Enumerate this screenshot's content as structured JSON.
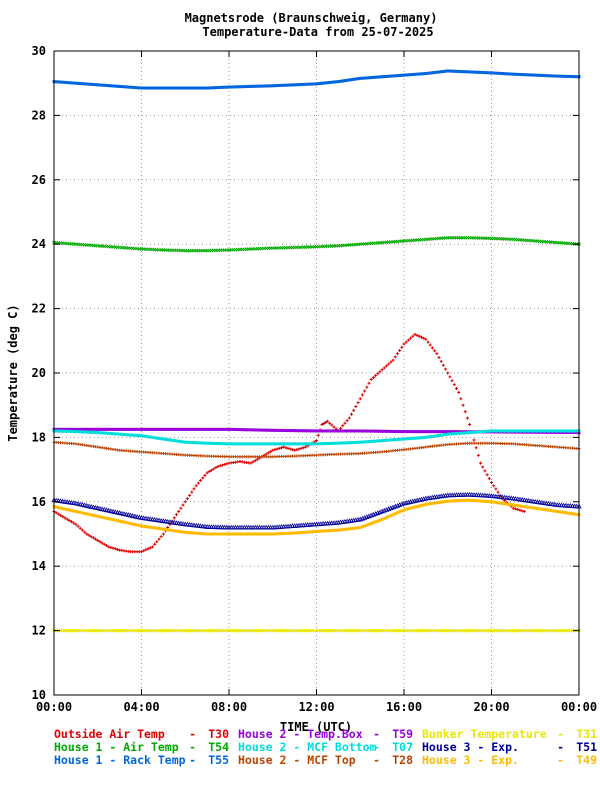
{
  "chart_data": {
    "type": "scatter",
    "title": "Magnetsrode (Braunschweig, Germany)",
    "subtitle": "Temperature-Data from 25-07-2025",
    "xlabel": "TIME (UTC)",
    "ylabel": "Temperature (deg C)",
    "xlim": [
      0,
      24
    ],
    "ylim": [
      10,
      30
    ],
    "grid": true,
    "legend_position": "bottom",
    "x_ticks": [
      {
        "value": 0,
        "label": "00:00"
      },
      {
        "value": 4,
        "label": "04:00"
      },
      {
        "value": 8,
        "label": "08:00"
      },
      {
        "value": 12,
        "label": "12:00"
      },
      {
        "value": 16,
        "label": "16:00"
      },
      {
        "value": 20,
        "label": "20:00"
      },
      {
        "value": 24,
        "label": "00:00"
      }
    ],
    "y_ticks": [
      {
        "value": 10,
        "label": "10"
      },
      {
        "value": 12,
        "label": "12"
      },
      {
        "value": 14,
        "label": "14"
      },
      {
        "value": 16,
        "label": "16"
      },
      {
        "value": 18,
        "label": "18"
      },
      {
        "value": 20,
        "label": "20"
      },
      {
        "value": 22,
        "label": "22"
      },
      {
        "value": 24,
        "label": "24"
      },
      {
        "value": 26,
        "label": "26"
      },
      {
        "value": 28,
        "label": "28"
      },
      {
        "value": 30,
        "label": "30"
      }
    ],
    "series": [
      {
        "name": "Outside Air Temp",
        "code": "T30",
        "color": "#dd0000",
        "marker": "plus",
        "points": [
          [
            0,
            15.7
          ],
          [
            0.5,
            15.5
          ],
          [
            1,
            15.3
          ],
          [
            1.5,
            15.0
          ],
          [
            2,
            14.8
          ],
          [
            2.5,
            14.6
          ],
          [
            3,
            14.5
          ],
          [
            3.5,
            14.45
          ],
          [
            4,
            14.45
          ],
          [
            4.5,
            14.6
          ],
          [
            5,
            15.0
          ],
          [
            5.5,
            15.5
          ],
          [
            6,
            16.0
          ],
          [
            6.5,
            16.5
          ],
          [
            7,
            16.9
          ],
          [
            7.5,
            17.1
          ],
          [
            8,
            17.2
          ],
          [
            8.5,
            17.25
          ],
          [
            9,
            17.2
          ],
          [
            9.5,
            17.4
          ],
          [
            10,
            17.6
          ],
          [
            10.5,
            17.7
          ],
          [
            11,
            17.6
          ],
          [
            11.5,
            17.7
          ],
          [
            12,
            17.9
          ],
          [
            12.25,
            18.4
          ],
          [
            12.5,
            18.5
          ],
          [
            13,
            18.2
          ],
          [
            13.5,
            18.6
          ],
          [
            14,
            19.2
          ],
          [
            14.5,
            19.8
          ],
          [
            15,
            20.1
          ],
          [
            15.5,
            20.4
          ],
          [
            16,
            20.9
          ],
          [
            16.5,
            21.2
          ],
          [
            17,
            21.05
          ],
          [
            17.5,
            20.6
          ],
          [
            18,
            20.0
          ],
          [
            18.5,
            19.4
          ],
          [
            19,
            18.4
          ],
          [
            19.5,
            17.2
          ],
          [
            20,
            16.6
          ],
          [
            20.5,
            16.1
          ],
          [
            21,
            15.8
          ],
          [
            21.5,
            15.7
          ]
        ]
      },
      {
        "name": "House 1 - Air  Temp",
        "code": "T54",
        "color": "#00aa00",
        "marker": "x",
        "points": [
          [
            0,
            24.05
          ],
          [
            1,
            24.0
          ],
          [
            2,
            23.95
          ],
          [
            3,
            23.9
          ],
          [
            4,
            23.85
          ],
          [
            5,
            23.82
          ],
          [
            6,
            23.8
          ],
          [
            7,
            23.8
          ],
          [
            8,
            23.82
          ],
          [
            9,
            23.85
          ],
          [
            10,
            23.88
          ],
          [
            11,
            23.9
          ],
          [
            12,
            23.92
          ],
          [
            13,
            23.95
          ],
          [
            14,
            24.0
          ],
          [
            15,
            24.05
          ],
          [
            16,
            24.1
          ],
          [
            17,
            24.15
          ],
          [
            18,
            24.2
          ],
          [
            19,
            24.2
          ],
          [
            20,
            24.18
          ],
          [
            21,
            24.15
          ],
          [
            22,
            24.1
          ],
          [
            23,
            24.05
          ],
          [
            24,
            24.0
          ]
        ]
      },
      {
        "name": "House 1 - Rack Temp",
        "code": "T55",
        "color": "#0066dd",
        "marker": "square",
        "points": [
          [
            0,
            29.05
          ],
          [
            1,
            29.0
          ],
          [
            2,
            28.95
          ],
          [
            3,
            28.9
          ],
          [
            4,
            28.85
          ],
          [
            5,
            28.85
          ],
          [
            6,
            28.85
          ],
          [
            7,
            28.85
          ],
          [
            8,
            28.88
          ],
          [
            9,
            28.9
          ],
          [
            10,
            28.92
          ],
          [
            11,
            28.95
          ],
          [
            12,
            28.98
          ],
          [
            13,
            29.05
          ],
          [
            14,
            29.15
          ],
          [
            15,
            29.2
          ],
          [
            16,
            29.25
          ],
          [
            17,
            29.3
          ],
          [
            18,
            29.38
          ],
          [
            19,
            29.35
          ],
          [
            20,
            29.32
          ],
          [
            21,
            29.28
          ],
          [
            22,
            29.25
          ],
          [
            23,
            29.22
          ],
          [
            24,
            29.2
          ]
        ]
      },
      {
        "name": "House 2 - Temp.Box",
        "code": "T59",
        "color": "#9900dd",
        "marker": "square",
        "points": [
          [
            0,
            18.25
          ],
          [
            2,
            18.25
          ],
          [
            4,
            18.25
          ],
          [
            6,
            18.25
          ],
          [
            8,
            18.25
          ],
          [
            10,
            18.22
          ],
          [
            12,
            18.2
          ],
          [
            14,
            18.2
          ],
          [
            16,
            18.18
          ],
          [
            18,
            18.18
          ],
          [
            20,
            18.17
          ],
          [
            22,
            18.16
          ],
          [
            24,
            18.15
          ]
        ]
      },
      {
        "name": "House 2 - MCF Bottom",
        "code": "T07",
        "color": "#00dddd",
        "marker": "square",
        "points": [
          [
            0,
            18.2
          ],
          [
            1,
            18.18
          ],
          [
            2,
            18.15
          ],
          [
            3,
            18.1
          ],
          [
            4,
            18.05
          ],
          [
            5,
            17.95
          ],
          [
            6,
            17.85
          ],
          [
            7,
            17.82
          ],
          [
            8,
            17.8
          ],
          [
            9,
            17.8
          ],
          [
            10,
            17.8
          ],
          [
            11,
            17.8
          ],
          [
            12,
            17.8
          ],
          [
            13,
            17.82
          ],
          [
            14,
            17.85
          ],
          [
            15,
            17.9
          ],
          [
            16,
            17.95
          ],
          [
            17,
            18.0
          ],
          [
            18,
            18.1
          ],
          [
            19,
            18.15
          ],
          [
            20,
            18.2
          ],
          [
            21,
            18.2
          ],
          [
            22,
            18.2
          ],
          [
            23,
            18.2
          ],
          [
            24,
            18.2
          ]
        ]
      },
      {
        "name": "House 2 - MCF Top",
        "code": "T28",
        "color": "#bb4400",
        "marker": "plus",
        "points": [
          [
            0,
            17.85
          ],
          [
            1,
            17.8
          ],
          [
            2,
            17.7
          ],
          [
            3,
            17.6
          ],
          [
            4,
            17.55
          ],
          [
            5,
            17.5
          ],
          [
            6,
            17.45
          ],
          [
            7,
            17.42
          ],
          [
            8,
            17.4
          ],
          [
            9,
            17.4
          ],
          [
            10,
            17.4
          ],
          [
            11,
            17.42
          ],
          [
            12,
            17.45
          ],
          [
            13,
            17.48
          ],
          [
            14,
            17.5
          ],
          [
            15,
            17.55
          ],
          [
            16,
            17.62
          ],
          [
            17,
            17.7
          ],
          [
            18,
            17.78
          ],
          [
            19,
            17.82
          ],
          [
            20,
            17.82
          ],
          [
            21,
            17.8
          ],
          [
            22,
            17.75
          ],
          [
            23,
            17.7
          ],
          [
            24,
            17.65
          ]
        ]
      },
      {
        "name": "Bunker Temperature",
        "code": "T31",
        "color": "#e8e800",
        "marker": "x",
        "points": [
          [
            0,
            12.0
          ],
          [
            2,
            12.0
          ],
          [
            4,
            12.0
          ],
          [
            6,
            12.0
          ],
          [
            8,
            12.0
          ],
          [
            10,
            12.0
          ],
          [
            12,
            12.0
          ],
          [
            14,
            12.0
          ],
          [
            16,
            12.0
          ],
          [
            18,
            12.0
          ],
          [
            20,
            12.0
          ],
          [
            22,
            12.0
          ],
          [
            24,
            12.0
          ]
        ]
      },
      {
        "name": "House 3 - Exp.",
        "code": "T51",
        "color": "#000099",
        "marker": "triangle",
        "points": [
          [
            0,
            16.05
          ],
          [
            1,
            15.95
          ],
          [
            2,
            15.8
          ],
          [
            3,
            15.65
          ],
          [
            4,
            15.5
          ],
          [
            5,
            15.4
          ],
          [
            6,
            15.3
          ],
          [
            7,
            15.22
          ],
          [
            8,
            15.2
          ],
          [
            9,
            15.2
          ],
          [
            10,
            15.2
          ],
          [
            11,
            15.25
          ],
          [
            12,
            15.3
          ],
          [
            13,
            15.35
          ],
          [
            14,
            15.45
          ],
          [
            15,
            15.7
          ],
          [
            16,
            15.95
          ],
          [
            17,
            16.1
          ],
          [
            18,
            16.2
          ],
          [
            19,
            16.22
          ],
          [
            20,
            16.18
          ],
          [
            21,
            16.1
          ],
          [
            22,
            16.0
          ],
          [
            23,
            15.9
          ],
          [
            24,
            15.85
          ]
        ]
      },
      {
        "name": "House 3 - Exp.",
        "code": "T49",
        "color": "#ffbb00",
        "marker": "square",
        "points": [
          [
            0,
            15.85
          ],
          [
            1,
            15.7
          ],
          [
            2,
            15.55
          ],
          [
            3,
            15.4
          ],
          [
            4,
            15.25
          ],
          [
            5,
            15.15
          ],
          [
            6,
            15.05
          ],
          [
            7,
            15.0
          ],
          [
            8,
            15.0
          ],
          [
            9,
            15.0
          ],
          [
            10,
            15.0
          ],
          [
            11,
            15.03
          ],
          [
            12,
            15.08
          ],
          [
            13,
            15.12
          ],
          [
            14,
            15.2
          ],
          [
            15,
            15.45
          ],
          [
            16,
            15.75
          ],
          [
            17,
            15.92
          ],
          [
            18,
            16.02
          ],
          [
            19,
            16.05
          ],
          [
            20,
            16.0
          ],
          [
            21,
            15.9
          ],
          [
            22,
            15.8
          ],
          [
            23,
            15.7
          ],
          [
            24,
            15.6
          ]
        ]
      }
    ],
    "legend_rows": [
      [
        0,
        3,
        6
      ],
      [
        1,
        4,
        7
      ],
      [
        2,
        5,
        8
      ]
    ]
  }
}
